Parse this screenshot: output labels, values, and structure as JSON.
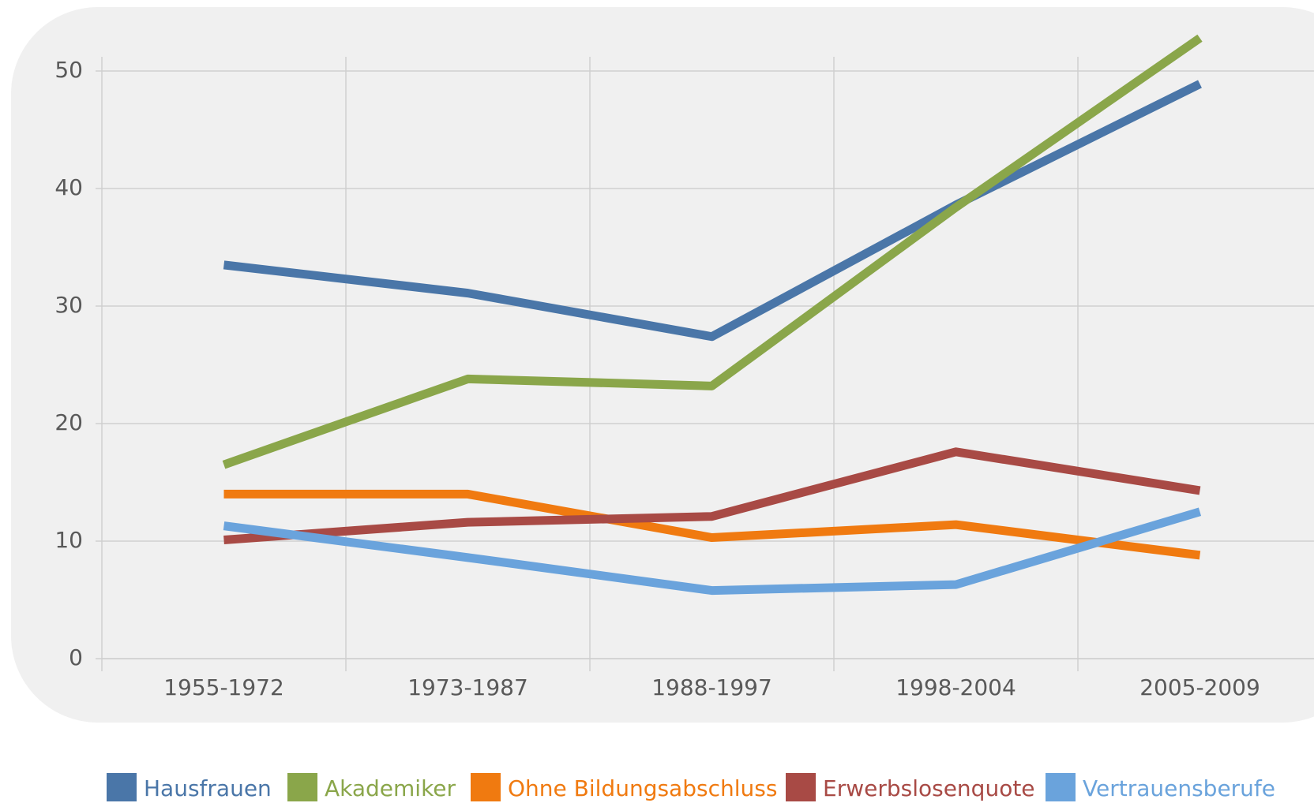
{
  "chart_data": {
    "type": "line",
    "categories": [
      "1955-1972",
      "1973-1987",
      "1988-1997",
      "1998-2004",
      "2005-2009"
    ],
    "series": [
      {
        "name": "Hausfrauen",
        "color": "#4a76a8",
        "values": [
          33.5,
          31.1,
          27.4,
          38.6,
          48.9
        ]
      },
      {
        "name": "Akademiker",
        "color": "#8aa64a",
        "values": [
          16.5,
          23.8,
          23.2,
          38.4,
          52.8
        ]
      },
      {
        "name": "Ohne Bildungsabschluss",
        "color": "#f07a10",
        "values": [
          14.0,
          14.0,
          10.3,
          11.4,
          8.8
        ]
      },
      {
        "name": "Erwerbslosenquote",
        "color": "#a84a45",
        "values": [
          10.1,
          11.6,
          12.1,
          17.6,
          14.3
        ]
      },
      {
        "name": "Vertrauensberufe",
        "color": "#6aa3dc",
        "values": [
          11.3,
          8.6,
          5.8,
          6.3,
          12.5
        ]
      }
    ],
    "ylim": [
      0,
      50
    ],
    "yticks": [
      0,
      10,
      20,
      30,
      40,
      50
    ],
    "grid": true,
    "legend": "bottom"
  }
}
